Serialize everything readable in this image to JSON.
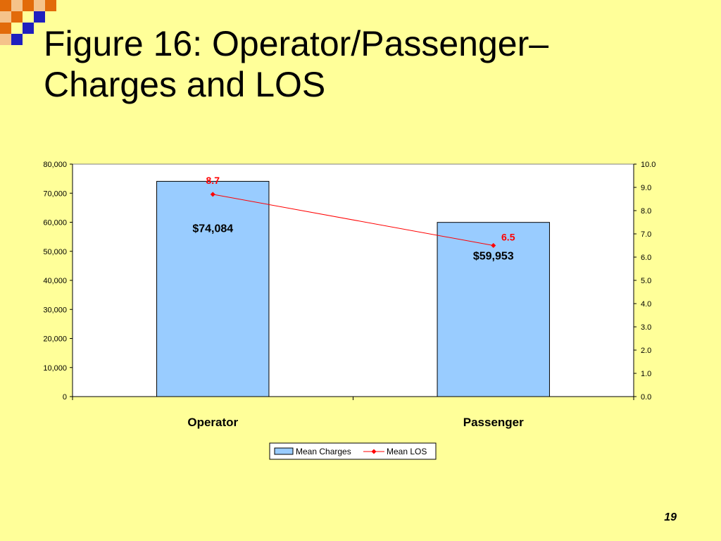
{
  "slide": {
    "title_line1": "Figure 16: Operator/Passenger–",
    "title_line2": "Charges and LOS",
    "page_number": "19",
    "colors": {
      "background": "#FFFF99",
      "deco_orange": "#E26B0A",
      "deco_blue": "#1F1FBF",
      "deco_peach": "#F5C38A"
    }
  },
  "chart_data": {
    "type": "bar",
    "categories": [
      "Operator",
      "Passenger"
    ],
    "series": [
      {
        "name": "Mean Charges",
        "type": "bar",
        "axis": "left",
        "values": [
          74084,
          59953
        ],
        "labels": [
          "$74,084",
          "$59,953"
        ],
        "color": "#99CCFF"
      },
      {
        "name": "Mean LOS",
        "type": "line",
        "axis": "right",
        "values": [
          8.7,
          6.5
        ],
        "labels": [
          "8.7",
          "6.5"
        ],
        "color": "#FF0000"
      }
    ],
    "y_left": {
      "range": [
        0,
        80000
      ],
      "ticks": [
        "0",
        "10,000",
        "20,000",
        "30,000",
        "40,000",
        "50,000",
        "60,000",
        "70,000",
        "80,000"
      ],
      "tick_values": [
        0,
        10000,
        20000,
        30000,
        40000,
        50000,
        60000,
        70000,
        80000
      ]
    },
    "y_right": {
      "range": [
        0,
        10
      ],
      "ticks": [
        "0.0",
        "1.0",
        "2.0",
        "3.0",
        "4.0",
        "5.0",
        "6.0",
        "7.0",
        "8.0",
        "9.0",
        "10.0"
      ],
      "tick_values": [
        0,
        1,
        2,
        3,
        4,
        5,
        6,
        7,
        8,
        9,
        10
      ]
    },
    "grid": false,
    "legend_position": "bottom-center"
  }
}
